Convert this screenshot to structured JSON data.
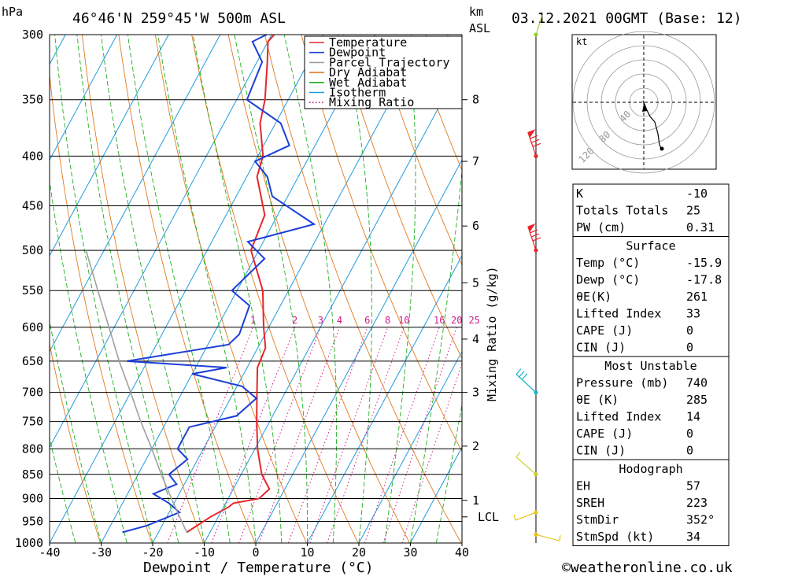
{
  "header": {
    "p_unit": "hPa",
    "location": "46°46'N  259°45'W  500m  ASL",
    "km_label": "km",
    "asl_label": "ASL",
    "datetime": "03.12.2021  00GMT  (Base: 12)"
  },
  "footer": {
    "x_axis_title": "Dewpoint / Temperature (°C)",
    "credit": "©weatheronline.co.uk"
  },
  "legend": {
    "items": [
      {
        "label": "Temperature",
        "color": "#e8252b",
        "style": "solid"
      },
      {
        "label": "Dewpoint",
        "color": "#1c3fd6",
        "style": "solid"
      },
      {
        "label": "Parcel Trajectory",
        "color": "#a0a0a0",
        "style": "solid"
      },
      {
        "label": "Dry Adiabat",
        "color": "#e07b1f",
        "style": "solid"
      },
      {
        "label": "Wet Adiabat",
        "color": "#1fae1f",
        "style": "solid"
      },
      {
        "label": "Isotherm",
        "color": "#1e9be0",
        "style": "solid"
      },
      {
        "label": "Mixing Ratio",
        "color": "#d0198c",
        "style": "dotted"
      }
    ]
  },
  "chart_data": {
    "type": "line",
    "chart_kind": "skew-t log-p sounding",
    "x_axis": {
      "label": "Dewpoint / Temperature (°C)",
      "range": [
        -40,
        40
      ],
      "ticks": [
        -40,
        -30,
        -20,
        -10,
        0,
        10,
        20,
        30,
        40
      ]
    },
    "y_axis": {
      "label": "hPa",
      "scale": "log",
      "range": [
        1000,
        300
      ],
      "ticks": [
        300,
        350,
        400,
        450,
        500,
        550,
        600,
        650,
        700,
        750,
        800,
        850,
        900,
        950,
        1000
      ]
    },
    "km_axis": {
      "ticks": [
        {
          "label": "8",
          "pressure": 350
        },
        {
          "label": "7",
          "pressure": 405
        },
        {
          "label": "6",
          "pressure": 472
        },
        {
          "label": "5",
          "pressure": 540
        },
        {
          "label": "4",
          "pressure": 617
        },
        {
          "label": "3",
          "pressure": 700
        },
        {
          "label": "2",
          "pressure": 795
        },
        {
          "label": "1",
          "pressure": 904
        },
        {
          "label": "LCL",
          "pressure": 940
        }
      ]
    },
    "mixing_ratio_axis": {
      "label": "Mixing Ratio (g/kg)",
      "values": [
        "1",
        "2",
        "3",
        "4",
        "6",
        "8",
        "10",
        "16",
        "20",
        "25"
      ]
    },
    "series": [
      {
        "name": "Temperature",
        "color": "#e8252b",
        "points": [
          [
            975,
            -14.5
          ],
          [
            940,
            -11.5
          ],
          [
            918,
            -9.0
          ],
          [
            910,
            -8.5
          ],
          [
            900,
            -4.0
          ],
          [
            880,
            -3.0
          ],
          [
            850,
            -6.0
          ],
          [
            800,
            -9.5
          ],
          [
            750,
            -12.5
          ],
          [
            700,
            -15.5
          ],
          [
            660,
            -18.0
          ],
          [
            630,
            -18.5
          ],
          [
            600,
            -21.0
          ],
          [
            550,
            -25.0
          ],
          [
            500,
            -31.5
          ],
          [
            480,
            -32.0
          ],
          [
            460,
            -32.5
          ],
          [
            420,
            -38.0
          ],
          [
            400,
            -39.0
          ],
          [
            370,
            -43.0
          ],
          [
            350,
            -44.5
          ],
          [
            320,
            -48.0
          ],
          [
            305,
            -50.0
          ],
          [
            300,
            -49.5
          ]
        ]
      },
      {
        "name": "Dewpoint",
        "color": "#1c3fd6",
        "points": [
          [
            975,
            -27.0
          ],
          [
            960,
            -23.0
          ],
          [
            930,
            -18.0
          ],
          [
            910,
            -21.0
          ],
          [
            890,
            -25.0
          ],
          [
            870,
            -21.5
          ],
          [
            850,
            -24.0
          ],
          [
            820,
            -22.0
          ],
          [
            800,
            -25.0
          ],
          [
            760,
            -25.0
          ],
          [
            740,
            -17.0
          ],
          [
            710,
            -15.0
          ],
          [
            690,
            -19.0
          ],
          [
            670,
            -30.0
          ],
          [
            660,
            -24.0
          ],
          [
            650,
            -44.0
          ],
          [
            625,
            -26.0
          ],
          [
            610,
            -25.0
          ],
          [
            570,
            -26.0
          ],
          [
            550,
            -31.0
          ],
          [
            510,
            -28.0
          ],
          [
            490,
            -33.0
          ],
          [
            470,
            -22.0
          ],
          [
            440,
            -33.0
          ],
          [
            420,
            -36.0
          ],
          [
            405,
            -40.0
          ],
          [
            390,
            -35.0
          ],
          [
            370,
            -39.0
          ],
          [
            350,
            -48.0
          ],
          [
            320,
            -49.0
          ],
          [
            305,
            -53.0
          ],
          [
            300,
            -51.0
          ]
        ]
      },
      {
        "name": "Parcel Trajectory",
        "color": "#a0a0a0",
        "points": [
          [
            975,
            -14.5
          ],
          [
            940,
            -17.5
          ],
          [
            900,
            -21.0
          ],
          [
            850,
            -25.5
          ],
          [
            800,
            -30.0
          ],
          [
            750,
            -35.0
          ],
          [
            700,
            -40.0
          ],
          [
            650,
            -45.5
          ],
          [
            600,
            -51.0
          ],
          [
            550,
            -57.0
          ],
          [
            500,
            -63.5
          ]
        ]
      }
    ]
  },
  "wind_barbs": [
    {
      "pressure": 300,
      "color": "#9acd32"
    },
    {
      "pressure": 400,
      "color": "#e8252b"
    },
    {
      "pressure": 500,
      "color": "#e8252b"
    },
    {
      "pressure": 700,
      "color": "#1bb3c8"
    },
    {
      "pressure": 850,
      "color": "#c8d22a"
    },
    {
      "pressure": 930,
      "color": "#e6c619"
    },
    {
      "pressure": 980,
      "color": "#e6c619"
    }
  ],
  "hodograph": {
    "unit": "kt",
    "ring_labels": [
      "40",
      "80",
      "120"
    ]
  },
  "tables": {
    "indices": [
      {
        "label": "K",
        "value": "-10"
      },
      {
        "label": "Totals Totals",
        "value": "25"
      },
      {
        "label": "PW (cm)",
        "value": "0.31"
      }
    ],
    "surface": {
      "title": "Surface",
      "rows": [
        {
          "label": "Temp (°C)",
          "value": "-15.9"
        },
        {
          "label": "Dewp (°C)",
          "value": "-17.8"
        },
        {
          "label": "θE(K)",
          "value": "261"
        },
        {
          "label": "Lifted Index",
          "value": "33"
        },
        {
          "label": "CAPE (J)",
          "value": "0"
        },
        {
          "label": "CIN (J)",
          "value": "0"
        }
      ]
    },
    "most_unstable": {
      "title": "Most Unstable",
      "rows": [
        {
          "label": "Pressure (mb)",
          "value": "740"
        },
        {
          "label": "θE (K)",
          "value": "285"
        },
        {
          "label": "Lifted Index",
          "value": "14"
        },
        {
          "label": "CAPE (J)",
          "value": "0"
        },
        {
          "label": "CIN (J)",
          "value": "0"
        }
      ]
    },
    "hodograph": {
      "title": "Hodograph",
      "rows": [
        {
          "label": "EH",
          "value": "57"
        },
        {
          "label": "SREH",
          "value": "223"
        },
        {
          "label": "StmDir",
          "value": "352°"
        },
        {
          "label": "StmSpd (kt)",
          "value": "34"
        }
      ]
    }
  }
}
